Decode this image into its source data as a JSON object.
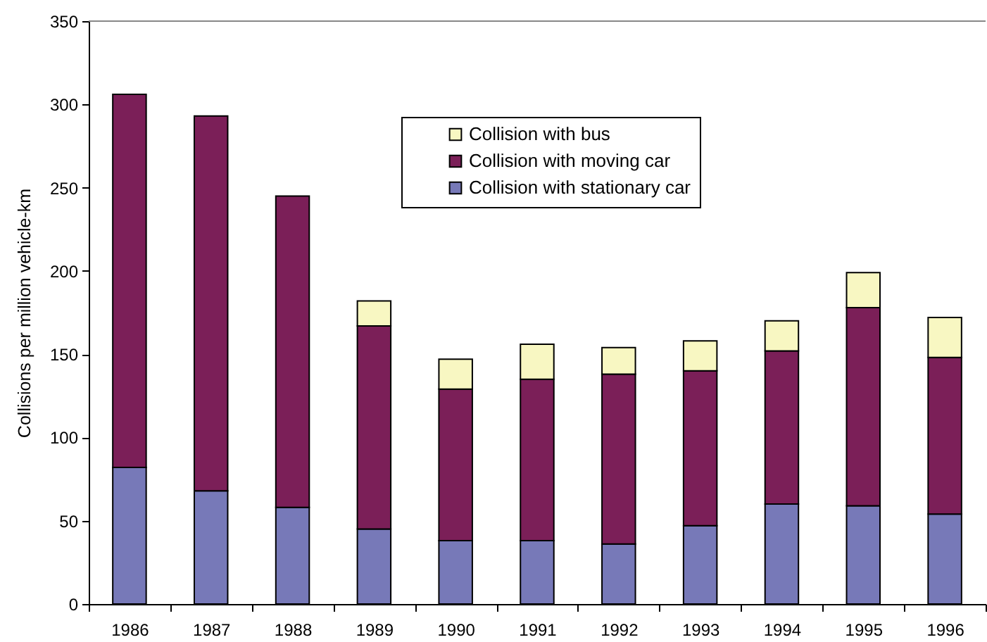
{
  "chart_data": {
    "type": "bar",
    "stacked": true,
    "ylabel": "Collisions per million vehicle-km",
    "categories": [
      "1986",
      "1987",
      "1988",
      "1989",
      "1990",
      "1991",
      "1992",
      "1993",
      "1994",
      "1995",
      "1996"
    ],
    "series": [
      {
        "name": "Collision with stationary car",
        "color": "#7779b8",
        "values": [
          82,
          68,
          58,
          45,
          38,
          38,
          36,
          47,
          60,
          59,
          54
        ]
      },
      {
        "name": "Collision with moving car",
        "color": "#7b1f58",
        "values": [
          224,
          225,
          187,
          122,
          91,
          97,
          102,
          93,
          92,
          119,
          94
        ]
      },
      {
        "name": "Collision with bus",
        "color": "#f8f7c2",
        "values": [
          null,
          null,
          null,
          15,
          18,
          21,
          16,
          18,
          18,
          21,
          24
        ]
      }
    ],
    "ylim": [
      0,
      350
    ],
    "yticks": [
      0,
      50,
      100,
      150,
      200,
      250,
      300,
      350
    ],
    "grid": false,
    "legend": "top"
  }
}
